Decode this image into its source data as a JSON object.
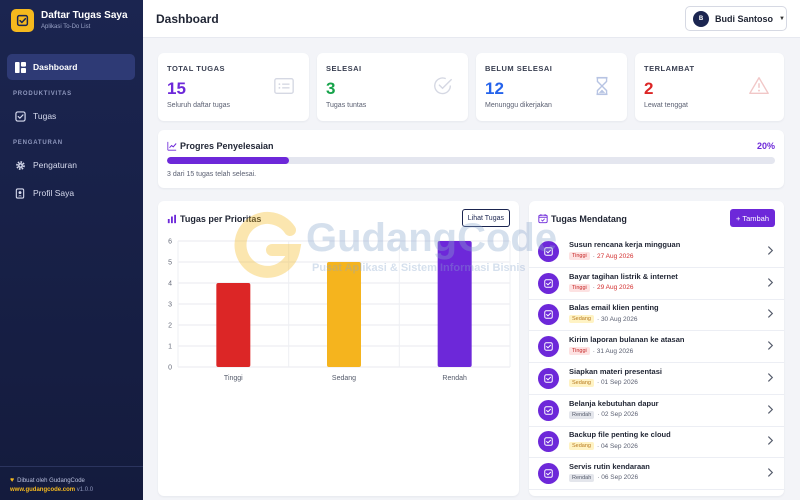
{
  "app": {
    "title": "Daftar Tugas Saya",
    "subtitle": "Aplikasi To-Do List"
  },
  "sidebar": {
    "items": [
      {
        "label": "Dashboard",
        "icon": "dashboard-icon",
        "active": true
      },
      {
        "label": "Tugas",
        "icon": "checkbox-icon",
        "active": false
      },
      {
        "label": "Pengaturan",
        "icon": "gear-icon",
        "active": false
      },
      {
        "label": "Profil Saya",
        "icon": "id-badge-icon",
        "active": false
      }
    ],
    "sections": [
      "PRODUKTIVITAS",
      "PENGATURAN"
    ],
    "footer": {
      "credit": "Dibuat oleh GudangCode",
      "site": "www.gudangcode.com",
      "version": "v1.0.0"
    }
  },
  "header": {
    "title": "Dashboard",
    "user": {
      "initial": "B",
      "name": "Budi Santoso"
    }
  },
  "stats": [
    {
      "label": "TOTAL TUGAS",
      "value": "15",
      "desc": "Seluruh daftar tugas",
      "color": "#6d28d9",
      "icon": "list-icon"
    },
    {
      "label": "SELESAI",
      "value": "3",
      "desc": "Tugas tuntas",
      "color": "#16a34a",
      "icon": "check-circle-icon"
    },
    {
      "label": "BELUM SELESAI",
      "value": "12",
      "desc": "Menunggu dikerjakan",
      "color": "#2563eb",
      "icon": "hourglass-icon"
    },
    {
      "label": "TERLAMBAT",
      "value": "2",
      "desc": "Lewat tenggat",
      "color": "#dc2626",
      "icon": "warning-icon"
    }
  ],
  "progress": {
    "title": "Progres Penyelesaian",
    "percent_label": "20%",
    "fraction": 0.2,
    "note": "3 dari 15 tugas telah selesai."
  },
  "chart_section": {
    "title": "Tugas per Prioritas",
    "button": "Lihat Tugas"
  },
  "chart_data": {
    "type": "bar",
    "categories": [
      "Tinggi",
      "Sedang",
      "Rendah"
    ],
    "values": [
      4,
      5,
      6
    ],
    "colors": [
      "#dc2626",
      "#f5b41e",
      "#6d28d9"
    ],
    "ylim": [
      0,
      6
    ],
    "yticks": [
      "0",
      "1",
      "2",
      "3",
      "4",
      "5",
      "6"
    ],
    "grid": true,
    "title": "",
    "xlabel": "",
    "ylabel": ""
  },
  "upcoming": {
    "title": "Tugas Mendatang",
    "add_button": "+ Tambah",
    "tasks": [
      {
        "title": "Susun rencana kerja mingguan",
        "priority": "Tinggi",
        "date": "27 Aug 2026",
        "overdue": true
      },
      {
        "title": "Bayar tagihan listrik & internet",
        "priority": "Tinggi",
        "date": "29 Aug 2026",
        "overdue": true
      },
      {
        "title": "Balas email klien penting",
        "priority": "Sedang",
        "date": "· 30 Aug 2026",
        "overdue": false
      },
      {
        "title": "Kirim laporan bulanan ke atasan",
        "priority": "Tinggi",
        "date": "· 31 Aug 2026",
        "overdue": false
      },
      {
        "title": "Siapkan materi presentasi",
        "priority": "Sedang",
        "date": "· 01 Sep 2026",
        "overdue": false
      },
      {
        "title": "Belanja kebutuhan dapur",
        "priority": "Rendah",
        "date": "· 02 Sep 2026",
        "overdue": false
      },
      {
        "title": "Backup file penting ke cloud",
        "priority": "Sedang",
        "date": "· 04 Sep 2026",
        "overdue": false
      },
      {
        "title": "Servis rutin kendaraan",
        "priority": "Rendah",
        "date": "· 06 Sep 2026",
        "overdue": false
      }
    ]
  },
  "watermark": {
    "text": "GudangCode",
    "sub": "Pusat Aplikasi & Sistem Informasi Bisnis"
  }
}
